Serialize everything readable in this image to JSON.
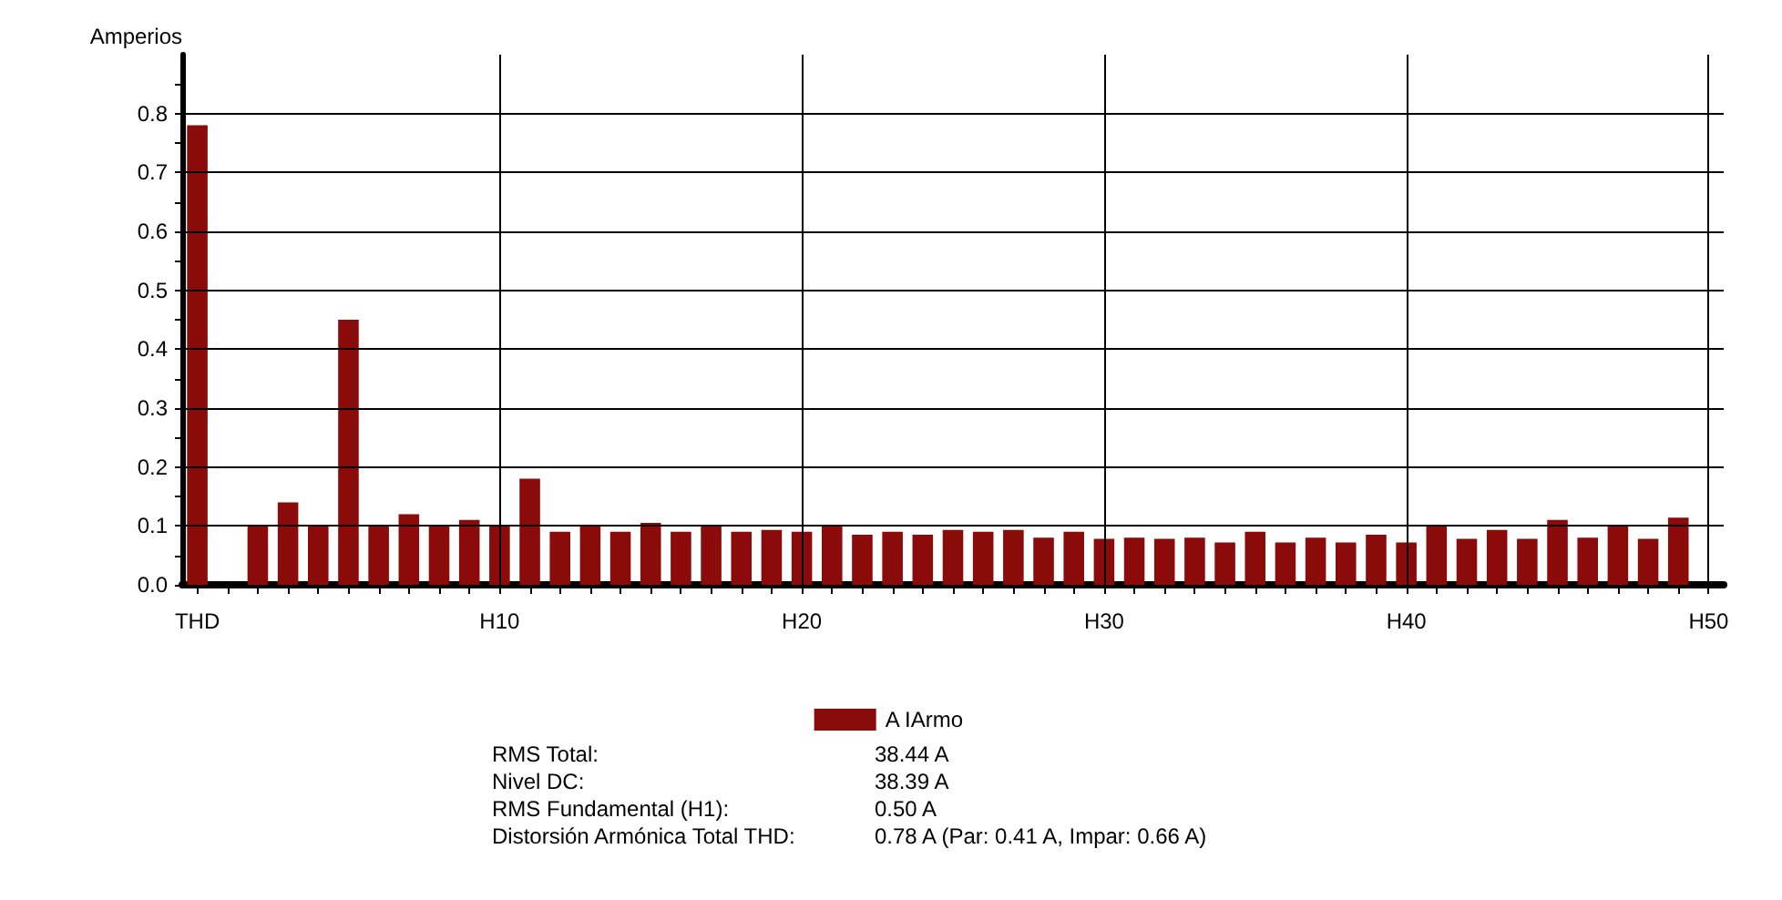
{
  "chart_data": {
    "type": "bar",
    "ylabel": "Amperios",
    "categories": [
      "THD",
      null,
      null,
      null,
      null,
      null,
      null,
      null,
      null,
      null,
      "H10",
      null,
      null,
      null,
      null,
      null,
      null,
      null,
      null,
      null,
      "H20",
      null,
      null,
      null,
      null,
      null,
      null,
      null,
      null,
      null,
      "H30",
      null,
      null,
      null,
      null,
      null,
      null,
      null,
      null,
      null,
      "H40",
      null,
      null,
      null,
      null,
      null,
      null,
      null,
      null,
      null,
      "H50"
    ],
    "series": [
      {
        "name": "A IArmo",
        "color": "#8b0a0a",
        "values": [
          0.78,
          0,
          0.1,
          0.14,
          0.1,
          0.45,
          0.1,
          0.12,
          0.1,
          0.11,
          0.1,
          0.18,
          0.09,
          0.1,
          0.09,
          0.105,
          0.09,
          0.1,
          0.09,
          0.093,
          0.09,
          0.1,
          0.085,
          0.09,
          0.085,
          0.093,
          0.09,
          0.093,
          0.08,
          0.09,
          0.078,
          0.08,
          0.078,
          0.08,
          0.072,
          0.09,
          0.072,
          0.08,
          0.072,
          0.085,
          0.072,
          0.1,
          0.078,
          0.093,
          0.078,
          0.11,
          0.08,
          0.1,
          0.078,
          0.114,
          0
        ]
      }
    ],
    "ylim": [
      0,
      0.9
    ],
    "yticks": [
      {
        "value": 0,
        "label": "0.0"
      },
      {
        "value": 0.05,
        "label": null
      },
      0.1,
      {
        "value": 0.15,
        "label": null
      },
      0.2,
      {
        "value": 0.25,
        "label": null
      },
      0.3,
      {
        "value": 0.35,
        "label": null
      },
      0.4,
      {
        "value": 0.45,
        "label": null
      },
      0.5,
      {
        "value": 0.55,
        "label": null
      },
      0.6,
      {
        "value": 0.65,
        "label": null
      },
      0.7,
      {
        "value": 0.75,
        "label": null
      },
      0.8,
      {
        "value": 0.85,
        "label": null
      }
    ],
    "grid": true,
    "legend": "bottom",
    "annotations": [
      "RMS Total:",
      "38.44 A",
      "Nivel DC:",
      "38.39 A",
      "RMS Fundamental (H1):",
      "0.50 A",
      "Distorsión Armónica Total THD:",
      "0.78 A (Par: 0.41 A, Impar: 0.66 A)"
    ]
  }
}
